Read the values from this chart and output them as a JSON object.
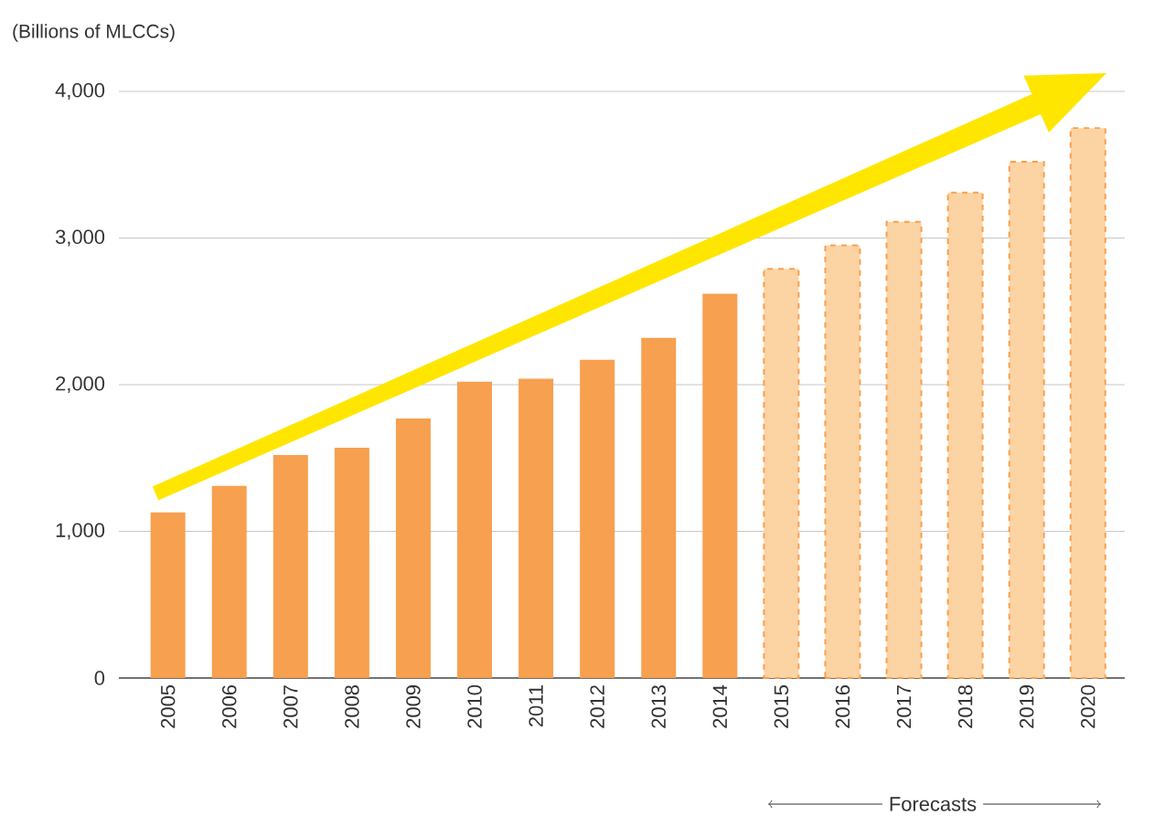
{
  "chart_data": {
    "type": "bar",
    "ylabel": "(Billions of MLCCs)",
    "categories": [
      "2005",
      "2006",
      "2007",
      "2008",
      "2009",
      "2010",
      "2011",
      "2012",
      "2013",
      "2014",
      "2015",
      "2016",
      "2017",
      "2018",
      "2019",
      "2020"
    ],
    "series": [
      {
        "color": "#f7a04f",
        "values": [
          1130,
          1310,
          1520,
          1570,
          1770,
          2020,
          2040,
          2170,
          2320,
          2620,
          null,
          null,
          null,
          null,
          null,
          null
        ]
      },
      {
        "color": "#fcd3a3",
        "line_style": "dashed",
        "values": [
          null,
          null,
          null,
          null,
          null,
          null,
          null,
          null,
          null,
          null,
          2790,
          2950,
          3110,
          3310,
          3520,
          3750
        ]
      }
    ],
    "ylim": [
      0,
      4000
    ],
    "yticks": [
      0,
      {
        "value": 1000,
        "label": "1,000"
      },
      {
        "value": 2000,
        "label": "2,000"
      },
      {
        "value": 3000,
        "label": "3,000"
      },
      {
        "value": 4000,
        "label": "4,000"
      }
    ],
    "grid": "y",
    "annotations": [
      "Forecasts"
    ]
  }
}
